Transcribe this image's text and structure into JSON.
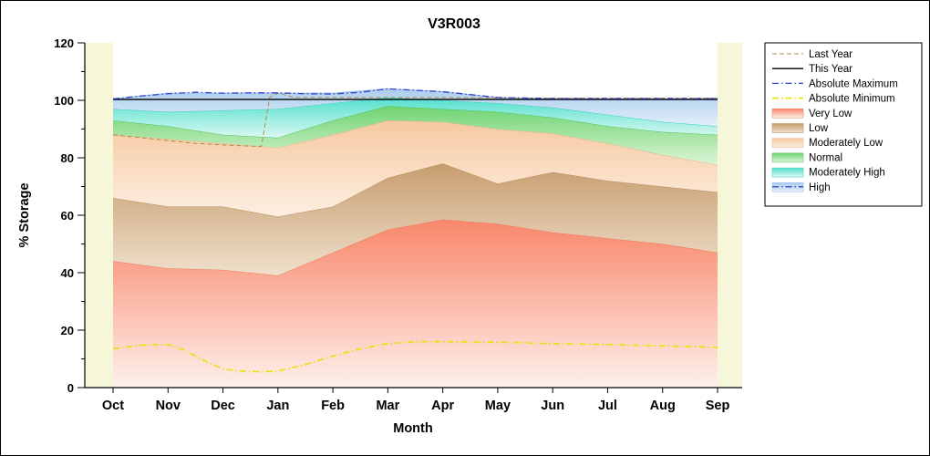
{
  "chart_data": {
    "type": "area",
    "title": "V3R003",
    "xlabel": "Month",
    "ylabel": "% Storage",
    "ylim": [
      0,
      120
    ],
    "yticks": [
      0,
      20,
      40,
      60,
      80,
      100,
      120
    ],
    "categories": [
      "Oct",
      "Nov",
      "Dec",
      "Jan",
      "Feb",
      "Mar",
      "Apr",
      "May",
      "Jun",
      "Jul",
      "Aug",
      "Sep"
    ],
    "grid": false,
    "legend_position": "right",
    "colors": {
      "edge_bg": "#f5f7d8",
      "axis": "#000000"
    },
    "bands": [
      {
        "name": "Very Low",
        "fill_top": "#f8866a",
        "fill_bottom": "#fef0eb",
        "stroke": "#ef7857",
        "top": [
          44,
          41.5,
          41,
          39,
          47,
          55,
          58.5,
          57,
          54,
          52,
          50,
          47
        ]
      },
      {
        "name": "Low",
        "fill_top": "#c79d6f",
        "fill_bottom": "#efe0cc",
        "stroke": "#b78a58",
        "top": [
          66,
          63,
          63,
          59.5,
          63,
          73,
          78,
          71,
          75,
          72,
          70,
          68
        ]
      },
      {
        "name": "Moderately Low",
        "fill_top": "#f6c9a1",
        "fill_bottom": "#fcefe1",
        "stroke": "#eab286",
        "top": [
          88,
          86.5,
          85,
          83.5,
          88,
          93,
          92.5,
          90,
          88.5,
          85,
          81,
          77.5
        ]
      },
      {
        "name": "Normal",
        "fill_top": "#6ed371",
        "fill_bottom": "#def5d8",
        "stroke": "#53c25a",
        "top": [
          93,
          91,
          88,
          87,
          93,
          98,
          97,
          96,
          94,
          91,
          89,
          88
        ]
      },
      {
        "name": "Moderately High",
        "fill_top": "#52e0cc",
        "fill_bottom": "#daf8f2",
        "stroke": "#38d0ba",
        "top": [
          97,
          96,
          96.5,
          97,
          99,
          101,
          100,
          99,
          97.5,
          95,
          92.5,
          91
        ]
      },
      {
        "name": "High",
        "fill_top": "#abcdee",
        "fill_bottom": "#e3eefa",
        "stroke": "#9cc1e6",
        "top": [
          100.5,
          102.5,
          102.5,
          102.5,
          102.5,
          104,
          103,
          101,
          100.5,
          100.5,
          100.5,
          100.5
        ]
      }
    ],
    "lines": [
      {
        "name": "Last Year",
        "style": "dash",
        "color": "#b08c4a",
        "width": 1,
        "x": [
          0,
          0.5,
          1,
          1.5,
          2,
          2.55,
          2.7,
          2.85,
          3,
          3.3,
          4,
          5,
          6,
          7,
          8,
          9,
          10,
          11
        ],
        "y": [
          88,
          87,
          86,
          85,
          84.5,
          84,
          84,
          101,
          102.5,
          101,
          101,
          101,
          101,
          100.8,
          100.8,
          100.8,
          100.8,
          100.8
        ]
      },
      {
        "name": "This Year",
        "style": "solid",
        "color": "#000000",
        "width": 1.3,
        "x": [
          0,
          11
        ],
        "y": [
          100.3,
          100.3
        ]
      },
      {
        "name": "Absolute Maximum",
        "style": "dashdot",
        "color": "#3344cc",
        "width": 1.3,
        "x": [
          0,
          0.5,
          1,
          1.5,
          2,
          2.5,
          3,
          3.5,
          4,
          4.5,
          5,
          5.5,
          6,
          6.5,
          7,
          8,
          9,
          10,
          11
        ],
        "y": [
          100.5,
          101.5,
          102.3,
          102.8,
          102.5,
          102.6,
          102.6,
          102.3,
          102.2,
          102.8,
          104,
          103.5,
          103,
          102,
          101,
          100.6,
          100.6,
          100.6,
          100.6
        ]
      },
      {
        "name": "Absolute Minimum",
        "style": "dashdot",
        "color": "#ede005",
        "width": 1.6,
        "x": [
          0,
          0.5,
          1,
          1.3,
          1.7,
          2,
          2.3,
          2.7,
          3,
          3.5,
          4,
          4.5,
          5,
          5.5,
          6,
          7,
          8,
          9,
          10,
          11
        ],
        "y": [
          13.5,
          14.8,
          15,
          13,
          9,
          6.5,
          5.8,
          5.5,
          5.8,
          8,
          11,
          13.5,
          15.3,
          16,
          16,
          15.8,
          15.3,
          15,
          14.5,
          14
        ]
      }
    ],
    "legend": {
      "items": [
        {
          "label": "Last Year",
          "swatch": "line",
          "ref": "Last Year"
        },
        {
          "label": "This Year",
          "swatch": "line",
          "ref": "This Year"
        },
        {
          "label": "Absolute Maximum",
          "swatch": "line",
          "ref": "Absolute Maximum"
        },
        {
          "label": "Absolute Minimum",
          "swatch": "line",
          "ref": "Absolute Minimum"
        },
        {
          "label": "Very Low",
          "swatch": "box",
          "ref": "Very Low"
        },
        {
          "label": "Low",
          "swatch": "box",
          "ref": "Low"
        },
        {
          "label": "Moderately Low",
          "swatch": "box",
          "ref": "Moderately Low"
        },
        {
          "label": "Normal",
          "swatch": "box",
          "ref": "Normal"
        },
        {
          "label": "Moderately High",
          "swatch": "box",
          "ref": "Moderately High"
        },
        {
          "label": "High",
          "swatch": "line-box",
          "ref": "High",
          "line_color": "#1a2fb0"
        }
      ]
    }
  }
}
